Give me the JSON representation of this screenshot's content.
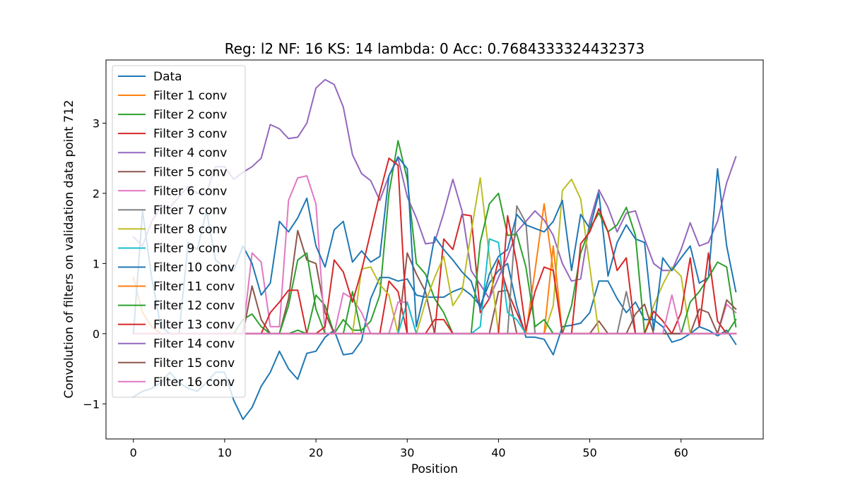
{
  "chart_data": {
    "type": "line",
    "title": "Reg: l2  NF: 16  KS: 14  lambda: 0 Acc: 0.7684333324432373",
    "xlabel": "Position",
    "ylabel": "Convolution of filters on validation data point 712",
    "xlim": [
      -3,
      69
    ],
    "ylim": [
      -1.5,
      3.9
    ],
    "xticks": [
      0,
      10,
      20,
      30,
      40,
      50,
      60
    ],
    "yticks": [
      -1,
      0,
      1,
      2,
      3
    ],
    "ytick_labels": [
      "−1",
      "0",
      "1",
      "2",
      "3"
    ],
    "grid": false,
    "legend_position": "upper-left",
    "x": [
      0,
      1,
      2,
      3,
      4,
      5,
      6,
      7,
      8,
      9,
      10,
      11,
      12,
      13,
      14,
      15,
      16,
      17,
      18,
      19,
      20,
      21,
      22,
      23,
      24,
      25,
      26,
      27,
      28,
      29,
      30,
      31,
      32,
      33,
      34,
      35,
      36,
      37,
      38,
      39,
      40,
      41,
      42,
      43,
      44,
      45,
      46,
      47,
      48,
      49,
      50,
      51,
      52,
      53,
      54,
      55,
      56,
      57,
      58,
      59,
      60,
      61,
      62,
      63,
      64,
      65,
      66
    ],
    "series": [
      {
        "name": "Data",
        "color": "#1f77b4",
        "values": [
          -0.9,
          -0.82,
          -0.78,
          -0.7,
          -0.55,
          -0.7,
          -0.78,
          -0.82,
          -0.7,
          -0.55,
          -0.55,
          -0.95,
          -1.22,
          -1.05,
          -0.75,
          -0.55,
          -0.25,
          -0.5,
          -0.65,
          -0.28,
          -0.25,
          -0.05,
          0.05,
          -0.3,
          -0.28,
          -0.1,
          0.5,
          0.8,
          0.8,
          0.75,
          0.78,
          0.55,
          0.52,
          0.52,
          0.52,
          0.6,
          0.65,
          0.55,
          0.4,
          0.72,
          0.9,
          1.0,
          0.4,
          -0.05,
          -0.05,
          -0.08,
          -0.3,
          0.1,
          0.12,
          0.15,
          0.3,
          0.75,
          0.75,
          0.5,
          0.3,
          0.45,
          0.2,
          0.2,
          0.1,
          -0.12,
          -0.08,
          0.0,
          0.1,
          0.05,
          -0.03,
          0.05,
          -0.15
        ]
      },
      {
        "name": "Filter 1 conv",
        "color": "#ff7f0e",
        "values": [
          0.8,
          0.3,
          0.1,
          0,
          0,
          0,
          0,
          0,
          0,
          0,
          0,
          0,
          0,
          0,
          0,
          0,
          0,
          0,
          0,
          0,
          0,
          0,
          0,
          0,
          0,
          0,
          0,
          0,
          0,
          0,
          0,
          0,
          0,
          0,
          0,
          0,
          0,
          0,
          0,
          0,
          0,
          0,
          0,
          0,
          0.9,
          1.85,
          0.9,
          0,
          0,
          0,
          0,
          0,
          0,
          0,
          0,
          0,
          0,
          0,
          0,
          0,
          0,
          0,
          0,
          0,
          0,
          0,
          0
        ]
      },
      {
        "name": "Filter 2 conv",
        "color": "#2ca02c",
        "values": [
          0,
          0,
          0,
          0,
          0,
          0,
          0,
          0,
          0,
          0,
          0,
          0,
          0.2,
          0.28,
          0.1,
          0,
          0,
          0,
          0.05,
          0,
          0.55,
          0.4,
          0,
          0.2,
          0.05,
          0.05,
          0.18,
          0.55,
          2.0,
          2.75,
          2.2,
          1.0,
          0.85,
          0.5,
          0.3,
          0,
          0,
          0,
          0,
          0,
          0,
          0,
          0,
          0,
          0,
          0,
          0,
          0,
          0,
          0,
          0,
          0,
          0,
          0,
          0,
          0,
          0,
          0,
          0,
          0,
          0,
          0,
          0,
          0,
          0,
          0,
          0.2
        ]
      },
      {
        "name": "Filter 3 conv",
        "color": "#d62728",
        "values": [
          0,
          0,
          0,
          0,
          0,
          0,
          0,
          0,
          0,
          0,
          0,
          0,
          0,
          0,
          0,
          0,
          0,
          0,
          0,
          0,
          0,
          0,
          0,
          0,
          0,
          0,
          0,
          0,
          0.75,
          0.6,
          0,
          0,
          0,
          0,
          1.35,
          1.2,
          1.7,
          1.68,
          0.3,
          0.5,
          1.05,
          0.6,
          0.3,
          0,
          0,
          0,
          0,
          0,
          0,
          0,
          0,
          0,
          0,
          0,
          0,
          0,
          0,
          0,
          0,
          0,
          0,
          0,
          0,
          0,
          0,
          0,
          0
        ]
      },
      {
        "name": "Filter 4 conv",
        "color": "#9467bd",
        "values": [
          1.38,
          1.25,
          1.6,
          1.8,
          1.8,
          1.95,
          2.1,
          2.0,
          2.0,
          2.38,
          2.38,
          2.2,
          2.3,
          2.38,
          2.5,
          2.98,
          2.92,
          2.78,
          2.8,
          3.0,
          3.5,
          3.62,
          3.55,
          3.23,
          2.55,
          2.28,
          2.18,
          1.9,
          2.25,
          2.5,
          1.95,
          1.65,
          1.28,
          1.3,
          1.72,
          2.2,
          1.75,
          0.9,
          0.7,
          0.5,
          0.8,
          1.1,
          1.45,
          1.6,
          1.75,
          1.62,
          1.4,
          1.0,
          0.75,
          0.78,
          1.6,
          2.05,
          1.8,
          1.45,
          1.72,
          1.75,
          1.35,
          1.0,
          0.9,
          0.9,
          1.2,
          1.58,
          1.25,
          1.3,
          1.6,
          2.15,
          2.52
        ]
      },
      {
        "name": "Filter 5 conv",
        "color": "#8c564b",
        "values": [
          0,
          0,
          0,
          0,
          0,
          0,
          0,
          0,
          0,
          0,
          0,
          0,
          0,
          0.68,
          0.2,
          0,
          0,
          0.5,
          1.47,
          1.05,
          1.0,
          0.3,
          0,
          0,
          0,
          0,
          0,
          0,
          0,
          0,
          1.15,
          0.85,
          0.6,
          0,
          0,
          0,
          0,
          0,
          0,
          0,
          0.6,
          0.62,
          0,
          0,
          0,
          0,
          0,
          0,
          0,
          0,
          0,
          0.18,
          0,
          0,
          0,
          0,
          0,
          0,
          0,
          0,
          0,
          0,
          0.35,
          0.3,
          0,
          0,
          0
        ]
      },
      {
        "name": "Filter 6 conv",
        "color": "#e377c2",
        "values": [
          0,
          0,
          0,
          0,
          0,
          0,
          0,
          0,
          0,
          0,
          0,
          0,
          0,
          1.15,
          1.02,
          0.1,
          0.1,
          1.9,
          2.22,
          2.25,
          1.85,
          0,
          0,
          0.58,
          0.5,
          0.3,
          0,
          0,
          0,
          0.45,
          0.45,
          0,
          0,
          0,
          0,
          0,
          0,
          0,
          0,
          0,
          0,
          0,
          0,
          0,
          0,
          0,
          0,
          0,
          0,
          0,
          0,
          0,
          0,
          0,
          0,
          0,
          0,
          0,
          0,
          0,
          0,
          0,
          0,
          0,
          0,
          0.42,
          0.3
        ]
      },
      {
        "name": "Filter 7 conv",
        "color": "#7f7f7f",
        "values": [
          0,
          0,
          0,
          0,
          0,
          0,
          0,
          0,
          0,
          0,
          0,
          0,
          0,
          0,
          0,
          0,
          0,
          0,
          0,
          0,
          0,
          0,
          0,
          0,
          0,
          0,
          0,
          0,
          0,
          0,
          0,
          0,
          0,
          0,
          0,
          0,
          0,
          0,
          0,
          0,
          0,
          0,
          1.82,
          1.58,
          0,
          0,
          0,
          0,
          0,
          0,
          0,
          0,
          0,
          0,
          0.6,
          0,
          0,
          0,
          0,
          0,
          0,
          0,
          0,
          0,
          0,
          0,
          0
        ]
      },
      {
        "name": "Filter 8 conv",
        "color": "#bcbd22",
        "values": [
          0,
          0,
          0,
          0,
          0,
          0,
          0,
          0,
          0,
          0,
          0,
          0,
          0,
          0,
          0,
          0,
          0,
          0,
          0,
          0,
          0,
          0,
          0,
          0,
          0,
          0.92,
          0.95,
          0.7,
          0.55,
          0,
          0,
          0,
          0.45,
          0.8,
          1.1,
          0.4,
          0.6,
          1.45,
          2.22,
          1.1,
          0,
          0,
          0,
          0,
          0,
          0,
          0.4,
          2.04,
          2.2,
          1.92,
          0.95,
          0,
          0,
          0,
          0,
          0,
          0,
          0.4,
          0.7,
          0.95,
          0.82,
          0,
          0,
          0,
          0,
          0,
          0
        ]
      },
      {
        "name": "Filter 9 conv",
        "color": "#17becf",
        "values": [
          0,
          0,
          0,
          0,
          0,
          0,
          0,
          0,
          0,
          0,
          0,
          0,
          0,
          0,
          0,
          0,
          0,
          0,
          0,
          0,
          0,
          0,
          0,
          0,
          0,
          0,
          0,
          0,
          0,
          0,
          0.45,
          0,
          0,
          0,
          0,
          0,
          0,
          0,
          0.1,
          1.35,
          1.3,
          0.3,
          0.2,
          0,
          0,
          0,
          0,
          0,
          0,
          0,
          0,
          0,
          0,
          0,
          0,
          0,
          0,
          0,
          0,
          0,
          0,
          0,
          0,
          0,
          0,
          0,
          0
        ]
      },
      {
        "name": "Filter 10 conv",
        "color": "#1f77b4",
        "values": [
          0,
          1.75,
          0.8,
          0.1,
          0,
          0,
          1.3,
          1.2,
          1.75,
          1.05,
          0.95,
          0.9,
          1.25,
          1.0,
          0.55,
          0.72,
          1.6,
          1.45,
          1.65,
          1.93,
          1.25,
          0.95,
          1.48,
          1.6,
          1.02,
          1.18,
          1.02,
          1.1,
          2.25,
          2.52,
          2.35,
          0.1,
          0.65,
          1.38,
          1.2,
          1.05,
          0.88,
          0.75,
          0.35,
          0.85,
          1.1,
          1.2,
          1.7,
          1.55,
          1.5,
          1.45,
          1.6,
          1.9,
          0.9,
          1.7,
          1.5,
          2.0,
          0.82,
          1.3,
          1.55,
          1.35,
          1.3,
          0.05,
          1.08,
          0.9,
          1.08,
          1.25,
          0.72,
          0.8,
          2.35,
          1.25,
          0.6
        ]
      },
      {
        "name": "Filter 11 conv",
        "color": "#ff7f0e",
        "values": [
          0,
          0,
          0,
          0,
          0,
          0,
          0,
          0,
          0,
          0,
          0,
          0,
          0,
          0,
          0,
          0,
          0,
          0,
          0,
          0,
          0,
          0,
          0,
          0,
          0,
          0,
          0,
          0,
          0,
          0,
          0,
          0,
          0,
          0,
          0,
          0,
          0,
          0,
          0,
          0,
          0,
          0,
          0,
          0,
          0,
          0,
          1.25,
          0,
          0,
          0,
          0,
          0,
          0,
          0,
          0,
          0,
          0,
          0,
          0,
          0,
          0,
          0,
          0,
          0,
          0,
          0,
          0
        ]
      },
      {
        "name": "Filter 12 conv",
        "color": "#2ca02c",
        "values": [
          0,
          0,
          0,
          0,
          0,
          0,
          0,
          0,
          0,
          0,
          0,
          0,
          0,
          0,
          0,
          0,
          0,
          0.4,
          1.05,
          1.15,
          0.35,
          0,
          0,
          0,
          0.6,
          0,
          0,
          0,
          0,
          0,
          0,
          0,
          0,
          0,
          0,
          0,
          0,
          0,
          1.3,
          1.85,
          2.0,
          1.4,
          1.42,
          0.95,
          0.1,
          0.2,
          0,
          0,
          0.4,
          1.15,
          1.5,
          1.72,
          1.45,
          1.55,
          1.8,
          1.4,
          0,
          0,
          0,
          0,
          0,
          0.45,
          0.6,
          0.8,
          1.02,
          0.95,
          0.1
        ]
      },
      {
        "name": "Filter 13 conv",
        "color": "#d62728",
        "values": [
          0,
          0,
          0,
          0,
          0,
          0,
          0,
          0,
          0,
          0,
          0,
          0,
          0,
          0,
          0,
          0.3,
          0.45,
          0.62,
          0.62,
          0,
          0,
          0.1,
          1.05,
          0.88,
          0.45,
          0.9,
          1.45,
          2.0,
          2.5,
          2.4,
          0,
          0,
          0,
          0.2,
          0.2,
          0,
          0,
          0,
          0,
          0,
          0,
          1.68,
          1.0,
          0.05,
          0.6,
          0.95,
          0.9,
          0,
          0,
          1.28,
          1.45,
          1.78,
          1.45,
          0.9,
          1.08,
          0,
          0,
          0.32,
          0.18,
          0.0,
          0.3,
          1.08,
          0.1,
          1.15,
          0.18,
          0,
          0
        ]
      },
      {
        "name": "Filter 14 conv",
        "color": "#9467bd",
        "values": [
          0,
          0,
          0,
          0,
          0,
          0,
          0,
          0,
          0,
          0,
          0,
          0,
          0,
          0,
          0,
          0,
          0,
          0,
          0,
          0,
          0,
          0,
          0,
          0,
          0,
          0,
          0,
          0,
          0,
          0,
          0,
          0,
          0,
          0,
          0,
          0,
          0,
          0,
          0,
          0,
          0,
          0,
          0,
          0,
          0,
          0,
          0,
          0,
          0,
          0,
          0,
          0,
          0,
          0,
          0,
          0,
          0,
          0,
          0,
          0,
          0,
          0,
          0,
          0,
          0,
          0,
          0
        ]
      },
      {
        "name": "Filter 15 conv",
        "color": "#8c564b",
        "values": [
          0,
          0,
          0,
          0,
          0,
          0,
          0,
          0,
          0,
          0,
          0,
          0,
          0,
          0,
          0,
          0,
          0,
          0,
          0,
          0,
          0,
          0,
          0,
          0,
          0,
          0,
          0,
          0,
          0,
          0,
          0,
          0,
          0,
          0,
          0,
          0,
          0,
          0,
          0,
          0,
          0,
          0,
          0,
          0,
          0,
          0,
          0,
          0,
          0,
          0,
          0,
          0,
          0,
          0,
          0,
          0.28,
          0.42,
          0,
          0,
          0,
          0,
          0,
          0,
          0,
          0,
          0.48,
          0.35
        ]
      },
      {
        "name": "Filter 16 conv",
        "color": "#e377c2",
        "values": [
          0,
          0,
          0,
          0,
          0,
          0,
          0,
          0,
          0,
          0,
          0,
          0,
          0,
          0,
          0,
          0,
          0,
          0,
          0,
          0,
          0,
          0,
          0,
          0,
          0,
          0,
          0,
          0,
          0,
          0,
          0,
          0,
          0,
          0,
          0,
          0,
          0,
          0,
          0,
          0,
          0,
          0,
          0,
          0,
          0,
          0,
          0,
          0,
          0,
          0,
          0,
          0,
          0,
          0,
          0,
          0,
          0,
          0,
          0,
          0.55,
          0,
          0,
          0,
          0,
          0,
          0,
          0
        ]
      }
    ]
  }
}
